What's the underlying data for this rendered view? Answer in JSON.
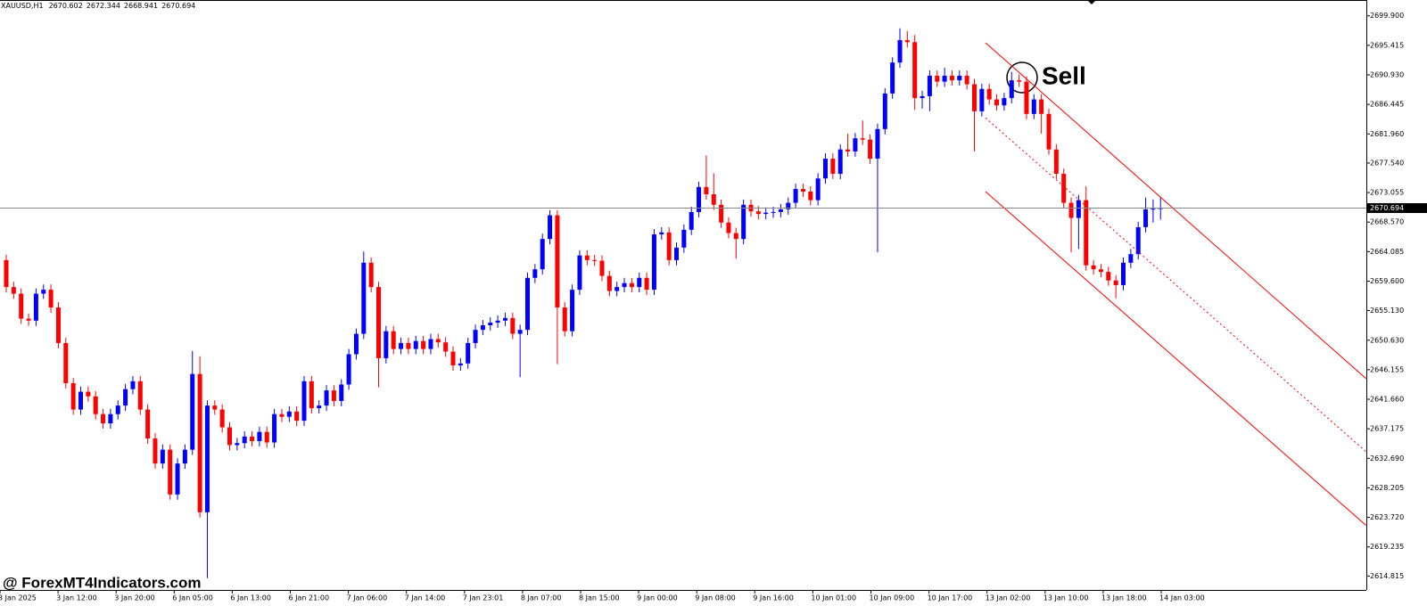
{
  "chart_data": {
    "type": "candlestick",
    "title": "XAUUSD,H1",
    "up_color": "#0000ff",
    "down_color": "#ff0000",
    "open": [
      2662.8,
      2658.7,
      2657.7,
      2653.9,
      2653.6,
      2657.7,
      2658.3,
      2655.6,
      2650.2,
      2644.1,
      2640.1,
      2642.8,
      2642.1,
      2639.4,
      2638.0,
      2639.4,
      2640.7,
      2643.2,
      2644.4,
      2640.1,
      2635.7,
      2631.9,
      2634.0,
      2627.2,
      2631.9,
      2634.0,
      2645.5,
      2624.5,
      2640.7,
      2640.1,
      2637.4,
      2634.7,
      2635.0,
      2636.0,
      2635.3,
      2636.7,
      2635.1,
      2639.4,
      2639.0,
      2639.8,
      2638.4,
      2644.4,
      2640.3,
      2640.7,
      2643.0,
      2641.4,
      2643.9,
      2648.5,
      2651.6,
      2662.4,
      2658.7,
      2647.9,
      2652.0,
      2649.3,
      2650.2,
      2649.3,
      2650.5,
      2649.3,
      2650.8,
      2650.3,
      2648.9,
      2646.8,
      2647.1,
      2650.2,
      2652.2,
      2652.9,
      2653.3,
      2653.6,
      2654.0,
      2651.6,
      2652.2,
      2660.1,
      2661.4,
      2666.0,
      2669.6,
      2655.6,
      2652.0,
      2658.3,
      2663.5,
      2662.8,
      2662.7,
      2660.4,
      2658.1,
      2658.7,
      2659.3,
      2658.7,
      2660.1,
      2658.3,
      2666.7,
      2667.0,
      2662.8,
      2664.7,
      2667.4,
      2670.1,
      2673.9,
      2672.8,
      2671.2,
      2668.5,
      2666.9,
      2666.0,
      2671.2,
      2670.2,
      2669.8,
      2670.0,
      2670.1,
      2670.5,
      2671.5,
      2673.6,
      2673.2,
      2671.9,
      2675.2,
      2678.2,
      2675.9,
      2679.6,
      2679.3,
      2681.3,
      2681.1,
      2678.2,
      2682.7,
      2688.1,
      2692.8,
      2696.2,
      2695.9,
      2687.4,
      2687.7,
      2690.8,
      2689.9,
      2690.8,
      2690.1,
      2690.8,
      2689.5,
      2685.4,
      2688.8,
      2687.2,
      2686.3,
      2687.4,
      2690.1,
      2689.9,
      2685.0,
      2687.2,
      2685.0,
      2679.6,
      2675.9,
      2671.5,
      2669.2,
      2671.9,
      2662.0,
      2661.4,
      2661.0,
      2659.7,
      2659.0,
      2662.4,
      2663.7,
      2667.8,
      2670.5,
      2670.602
    ],
    "high": [
      2663.6,
      2659.5,
      2658.5,
      2654.7,
      2658.5,
      2659.1,
      2659.1,
      2656.4,
      2651.0,
      2644.9,
      2643.6,
      2643.6,
      2642.9,
      2640.2,
      2640.2,
      2641.5,
      2644.0,
      2645.2,
      2645.2,
      2640.9,
      2636.5,
      2634.8,
      2634.8,
      2632.7,
      2634.8,
      2649.0,
      2648.2,
      2641.5,
      2641.5,
      2640.9,
      2638.2,
      2635.8,
      2636.8,
      2636.8,
      2637.5,
      2637.5,
      2640.2,
      2640.2,
      2640.6,
      2640.6,
      2645.2,
      2645.2,
      2641.5,
      2643.8,
      2643.8,
      2644.7,
      2649.3,
      2652.4,
      2664.1,
      2663.2,
      2659.5,
      2652.8,
      2652.8,
      2651.0,
      2651.0,
      2651.3,
      2651.3,
      2651.6,
      2651.6,
      2651.1,
      2649.7,
      2647.9,
      2651.0,
      2653.0,
      2653.7,
      2654.1,
      2654.4,
      2654.8,
      2654.8,
      2653.0,
      2660.9,
      2662.2,
      2666.8,
      2670.4,
      2670.4,
      2656.4,
      2659.1,
      2664.3,
      2664.3,
      2663.6,
      2663.5,
      2661.2,
      2659.5,
      2660.1,
      2660.1,
      2660.9,
      2660.9,
      2667.5,
      2667.8,
      2667.8,
      2665.5,
      2668.2,
      2670.9,
      2674.7,
      2678.7,
      2676.0,
      2672.0,
      2669.3,
      2667.7,
      2672.0,
      2672.0,
      2671.0,
      2670.8,
      2670.9,
      2671.3,
      2672.3,
      2674.4,
      2674.4,
      2674.0,
      2676.0,
      2679.0,
      2679.0,
      2680.4,
      2682.0,
      2682.1,
      2684.0,
      2681.9,
      2683.5,
      2688.9,
      2693.6,
      2698.0,
      2697.6,
      2697.0,
      2688.5,
      2691.6,
      2691.6,
      2692.0,
      2691.6,
      2691.6,
      2691.6,
      2690.3,
      2689.6,
      2689.6,
      2688.0,
      2688.2,
      2691.4,
      2691.0,
      2690.7,
      2688.0,
      2688.0,
      2685.8,
      2680.4,
      2676.7,
      2672.3,
      2672.7,
      2674.0,
      2662.8,
      2662.2,
      2661.8,
      2660.5,
      2663.2,
      2664.5,
      2668.6,
      2672.3,
      2672.0,
      2672.344
    ],
    "low": [
      2657.9,
      2656.9,
      2653.1,
      2652.8,
      2652.8,
      2656.9,
      2654.8,
      2649.4,
      2643.3,
      2639.3,
      2639.3,
      2641.3,
      2638.6,
      2637.2,
      2637.2,
      2638.6,
      2639.9,
      2642.4,
      2639.3,
      2634.9,
      2631.1,
      2631.1,
      2626.4,
      2626.4,
      2631.1,
      2633.2,
      2623.7,
      2614.5,
      2639.3,
      2636.6,
      2633.9,
      2633.9,
      2634.2,
      2634.5,
      2634.5,
      2634.3,
      2634.3,
      2638.2,
      2638.2,
      2637.6,
      2637.6,
      2639.5,
      2639.5,
      2639.9,
      2640.6,
      2640.6,
      2643.1,
      2647.7,
      2650.8,
      2657.9,
      2643.5,
      2647.1,
      2648.5,
      2648.5,
      2648.5,
      2648.5,
      2648.5,
      2648.5,
      2649.5,
      2648.1,
      2646.0,
      2646.0,
      2646.3,
      2649.4,
      2651.4,
      2652.1,
      2652.5,
      2652.8,
      2650.8,
      2645.0,
      2651.4,
      2659.3,
      2660.6,
      2665.2,
      2647.0,
      2651.2,
      2651.2,
      2657.5,
      2662.0,
      2661.9,
      2659.6,
      2657.3,
      2657.3,
      2657.9,
      2657.9,
      2657.9,
      2657.5,
      2657.5,
      2665.9,
      2662.0,
      2662.0,
      2663.9,
      2666.6,
      2669.3,
      2672.0,
      2670.4,
      2667.7,
      2666.1,
      2663.0,
      2665.2,
      2669.4,
      2669.0,
      2669.0,
      2669.2,
      2669.3,
      2669.7,
      2670.7,
      2672.4,
      2671.1,
      2671.1,
      2674.4,
      2675.1,
      2675.1,
      2678.5,
      2678.5,
      2680.3,
      2677.4,
      2664.0,
      2681.9,
      2687.3,
      2692.0,
      2695.1,
      2685.6,
      2685.8,
      2685.4,
      2689.1,
      2689.1,
      2689.3,
      2689.3,
      2688.7,
      2679.3,
      2684.6,
      2686.4,
      2685.5,
      2685.5,
      2686.6,
      2689.1,
      2684.2,
      2684.2,
      2682.0,
      2678.8,
      2675.1,
      2670.7,
      2664.0,
      2664.5,
      2661.2,
      2660.6,
      2660.2,
      2658.9,
      2657.0,
      2658.2,
      2661.6,
      2662.9,
      2667.0,
      2668.5,
      2668.941
    ],
    "close": [
      2658.7,
      2657.7,
      2653.9,
      2653.6,
      2657.7,
      2658.3,
      2655.6,
      2650.2,
      2644.1,
      2640.1,
      2642.8,
      2642.1,
      2639.4,
      2638.0,
      2639.4,
      2640.7,
      2643.2,
      2644.4,
      2640.1,
      2635.7,
      2631.9,
      2634.0,
      2627.2,
      2631.9,
      2634.0,
      2645.5,
      2624.5,
      2640.7,
      2640.1,
      2637.4,
      2634.7,
      2635.0,
      2636.0,
      2635.3,
      2636.7,
      2635.1,
      2639.4,
      2639.0,
      2639.8,
      2638.4,
      2644.4,
      2640.3,
      2640.7,
      2643.0,
      2641.4,
      2643.9,
      2648.5,
      2651.6,
      2662.4,
      2658.7,
      2647.9,
      2652.0,
      2649.3,
      2650.2,
      2649.3,
      2650.5,
      2649.3,
      2650.8,
      2650.3,
      2648.9,
      2646.8,
      2647.1,
      2650.2,
      2652.2,
      2652.9,
      2653.3,
      2653.6,
      2654.0,
      2651.6,
      2652.2,
      2660.1,
      2661.4,
      2666.0,
      2669.6,
      2655.6,
      2652.0,
      2658.3,
      2663.5,
      2662.8,
      2662.7,
      2660.4,
      2658.1,
      2658.7,
      2659.3,
      2658.7,
      2660.1,
      2658.3,
      2666.7,
      2667.0,
      2662.8,
      2664.7,
      2667.4,
      2670.1,
      2673.9,
      2672.8,
      2671.2,
      2668.5,
      2666.9,
      2666.0,
      2671.2,
      2670.2,
      2669.8,
      2670.0,
      2670.1,
      2670.5,
      2671.5,
      2673.6,
      2673.2,
      2671.9,
      2675.2,
      2678.2,
      2675.9,
      2679.6,
      2679.3,
      2681.3,
      2681.1,
      2678.2,
      2682.7,
      2688.1,
      2692.8,
      2696.2,
      2695.9,
      2687.4,
      2687.7,
      2690.8,
      2689.9,
      2690.8,
      2690.1,
      2690.8,
      2689.5,
      2685.4,
      2688.8,
      2687.2,
      2686.3,
      2687.4,
      2690.1,
      2689.9,
      2685.0,
      2687.2,
      2685.0,
      2679.6,
      2675.9,
      2671.5,
      2669.2,
      2671.9,
      2662.0,
      2661.4,
      2661.0,
      2659.7,
      2659.0,
      2662.4,
      2663.7,
      2667.8,
      2670.5,
      2670.6,
      2670.694
    ],
    "x_labels": [
      "3 Jan 2025",
      "3 Jan 12:00",
      "3 Jan 20:00",
      "6 Jan 05:00",
      "6 Jan 13:00",
      "6 Jan 21:00",
      "7 Jan 06:00",
      "7 Jan 14:00",
      "7 Jan 23:01",
      "8 Jan 07:00",
      "8 Jan 15:00",
      "9 Jan 00:00",
      "9 Jan 08:00",
      "9 Jan 16:00",
      "10 Jan 01:00",
      "10 Jan 09:00",
      "10 Jan 17:00",
      "13 Jan 02:00",
      "13 Jan 10:00",
      "13 Jan 18:00",
      "14 Jan 03:00"
    ],
    "ylim": [
      2612.7,
      2702.3
    ],
    "yticks": [
      {
        "value": 2699.9,
        "label": "2699.900"
      },
      2695.415,
      {
        "value": 2690.93,
        "label": "2690.930"
      },
      2686.445,
      {
        "value": 2681.96,
        "label": "2681.960"
      },
      {
        "value": 2677.54,
        "label": "2677.540"
      },
      2673.055,
      {
        "value": 2668.57,
        "label": "2668.570"
      },
      2664.085,
      {
        "value": 2659.6,
        "label": "2659.600"
      },
      {
        "value": 2655.13,
        "label": "2655.130"
      },
      {
        "value": 2650.63,
        "label": "2650.630"
      },
      2646.155,
      {
        "value": 2641.66,
        "label": "2641.660"
      },
      2637.175,
      {
        "value": 2632.69,
        "label": "2632.690"
      },
      2628.205,
      {
        "value": 2623.72,
        "label": "2623.720"
      },
      2619.235,
      2614.815
    ],
    "channel": {
      "color": "#ff0000",
      "start_bar": 131.5,
      "end_bar": 182.6,
      "upper": [
        2695.8,
        2644.8
      ],
      "middle": [
        2684.4,
        2633.7
      ],
      "lower": [
        2673.2,
        2622.5
      ]
    },
    "annotation": "Sell",
    "watermark": "@ ForexMT4Indicators.com"
  }
}
